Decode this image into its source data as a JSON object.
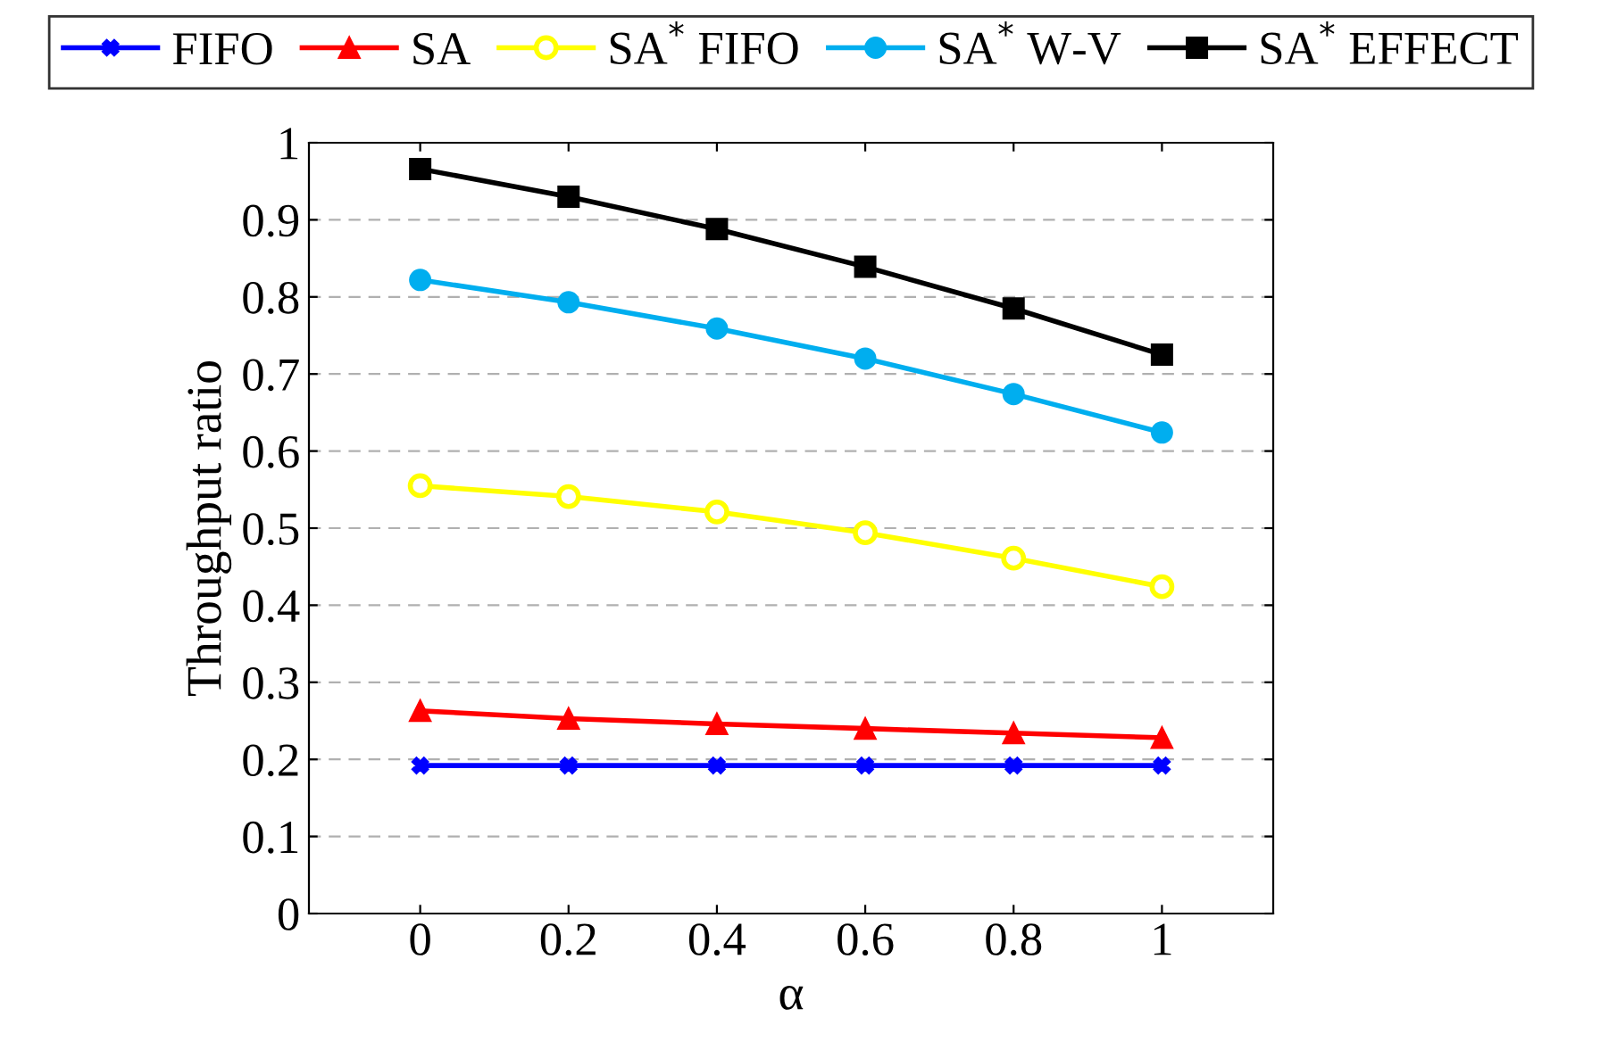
{
  "chart_data": {
    "type": "line",
    "xlabel": "α",
    "ylabel": "Throughput ratio",
    "x": [
      0,
      0.2,
      0.4,
      0.6,
      0.8,
      1
    ],
    "series": [
      {
        "name": "FIFO",
        "color": "#0000ff",
        "marker": "cross",
        "values": [
          0.192,
          0.192,
          0.192,
          0.192,
          0.192,
          0.192
        ]
      },
      {
        "name": "SA",
        "color": "#ff0000",
        "marker": "triangle",
        "values": [
          0.263,
          0.253,
          0.246,
          0.24,
          0.234,
          0.228
        ]
      },
      {
        "name": "SA$^{*}$ FIFO",
        "color": "#ffff00",
        "marker": "circle_open",
        "values": [
          0.555,
          0.541,
          0.521,
          0.494,
          0.461,
          0.424
        ]
      },
      {
        "name": "SA$^{*}$ W-V",
        "color": "#00aeef",
        "marker": "circle",
        "values": [
          0.822,
          0.793,
          0.759,
          0.72,
          0.674,
          0.624
        ]
      },
      {
        "name": "SA$^{*}$ EFFECT",
        "color": "#000000",
        "marker": "square",
        "values": [
          0.966,
          0.93,
          0.888,
          0.839,
          0.785,
          0.725
        ]
      }
    ],
    "xlim": [
      -0.15,
      1.15
    ],
    "xticks": [
      0,
      0.2,
      0.4,
      0.6,
      0.8,
      1
    ],
    "ylim": [
      0,
      1
    ],
    "yticks": [
      0,
      0.1,
      0.2,
      0.3,
      0.4,
      0.5,
      0.6,
      0.7,
      0.8,
      0.9,
      1
    ],
    "grid": "y",
    "legend": "top",
    "line_style": "solid"
  }
}
